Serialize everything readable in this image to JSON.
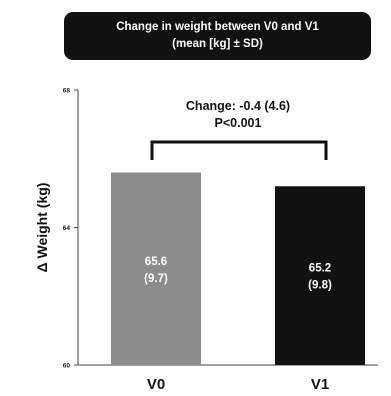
{
  "chart_data": {
    "type": "bar",
    "title": "Change in weight between V0 and V1",
    "subtitle": "(mean [kg] ± SD)",
    "ylabel": "Δ Weight (kg)",
    "xlabel": "",
    "ylim": [
      60,
      68
    ],
    "yticks": [
      "60",
      "64",
      "68"
    ],
    "categories": [
      "V0",
      "V1"
    ],
    "values": [
      65.6,
      65.2
    ],
    "sd": [
      9.7,
      9.8
    ],
    "bar_value_labels": [
      "65.6",
      "65.2"
    ],
    "bar_sd_labels": [
      "(9.7)",
      "(9.8)"
    ],
    "bar_colors": [
      "#8c8c8c",
      "#111111"
    ],
    "annotation": {
      "line1": "Change: -0.4 (4.6)",
      "line2": "P<0.001"
    },
    "grid": false,
    "legend": "none"
  }
}
